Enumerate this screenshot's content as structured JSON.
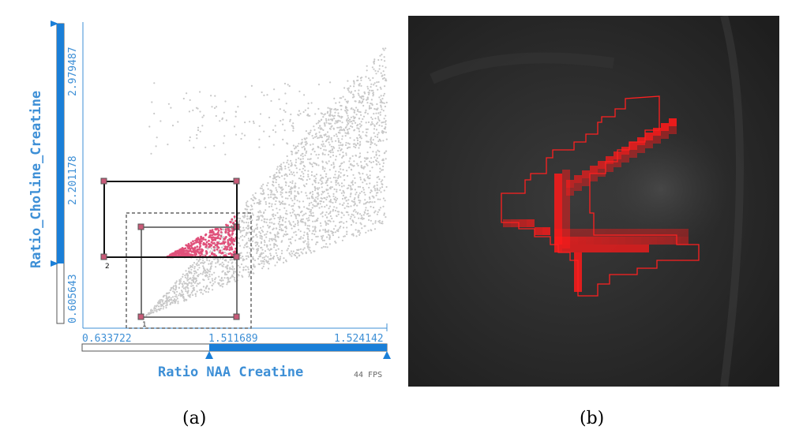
{
  "chart_data": [
    {
      "type": "scatter",
      "panel_label": "(a)",
      "xlabel": "Ratio NAA Creatine",
      "ylabel": "Ratio_Choline_Creatine",
      "x_ticks": [
        "0.633722",
        "1.511689",
        "1.524142"
      ],
      "y_ticks": [
        "0.605643",
        "2.201178",
        "2.979487"
      ],
      "fps_label": "44 FPS",
      "selection_labels": [
        "1",
        "2"
      ],
      "colors": {
        "points": "#c8c8c8",
        "highlight": "#e0507a",
        "axis": "#3d8fd6",
        "slider_fill": "#1a7fd8"
      }
    },
    {
      "type": "heatmap",
      "panel_label": "(b)",
      "colors": {
        "background": "#2a2a2a",
        "highlight": "#ff2020",
        "outline": "#ff2020"
      }
    }
  ],
  "captions": {
    "a": "(a)",
    "b": "(b)"
  }
}
